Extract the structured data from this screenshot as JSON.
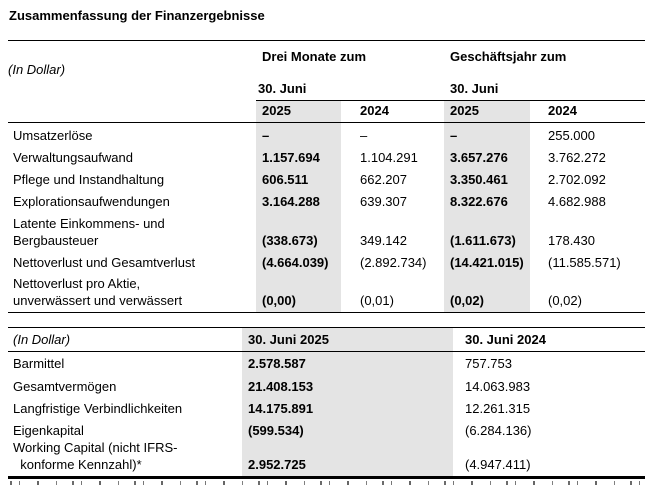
{
  "title": "Zusammenfassung der Finanzergebnisse",
  "colors": {
    "highlight": "#e4e4e4",
    "border": "#000000"
  },
  "t1": {
    "unit_label": "(In Dollar)",
    "group_headers": {
      "three_months": "Drei Monate zum",
      "fiscal_year": "Geschäftsjahr zum"
    },
    "date_subheader": "30. Juni",
    "years": [
      "2025",
      "2024",
      "2025",
      "2024"
    ],
    "rows": [
      {
        "label": "Umsatzerlöse",
        "values": [
          "–",
          "–",
          "–",
          "255.000"
        ]
      },
      {
        "label": "Verwaltungsaufwand",
        "values": [
          "1.157.694",
          "1.104.291",
          "3.657.276",
          "3.762.272"
        ]
      },
      {
        "label": "Pflege und Instandhaltung",
        "values": [
          "606.511",
          "662.207",
          "3.350.461",
          "2.702.092"
        ]
      },
      {
        "label": "Explorationsaufwendungen",
        "values": [
          "3.164.288",
          "639.307",
          "8.322.676",
          "4.682.988"
        ]
      },
      {
        "label": "Latente Einkommens- und\nBergbausteuer",
        "values": [
          "(338.673)",
          "349.142",
          "(1.611.673)",
          "178.430"
        ]
      },
      {
        "label": "Nettoverlust und Gesamtverlust",
        "values": [
          "(4.664.039)",
          "(2.892.734)",
          "(14.421.015)",
          "(11.585.571)"
        ]
      },
      {
        "label": "Nettoverlust pro Aktie,\nunverwässert und verwässert",
        "values": [
          "(0,00)",
          "(0,01)",
          "(0,02)",
          "(0,02)"
        ]
      }
    ]
  },
  "t2": {
    "unit_label": "(In Dollar)",
    "col_headers": [
      "30. Juni 2025",
      "30. Juni 2024"
    ],
    "rows": [
      {
        "label": "Barmittel",
        "values": [
          "2.578.587",
          "757.753"
        ]
      },
      {
        "label": "Gesamtvermögen",
        "values": [
          "21.408.153",
          "14.063.983"
        ]
      },
      {
        "label": "Langfristige Verbindlichkeiten",
        "values": [
          "14.175.891",
          "12.261.315"
        ]
      },
      {
        "label": "Eigenkapital",
        "values": [
          "(599.534)",
          "(6.284.136)"
        ]
      },
      {
        "label": "Working Capital (nicht IFRS-\n  konforme Kennzahl)*",
        "values": [
          "2.952.725",
          "(4.947.411)"
        ]
      }
    ]
  }
}
